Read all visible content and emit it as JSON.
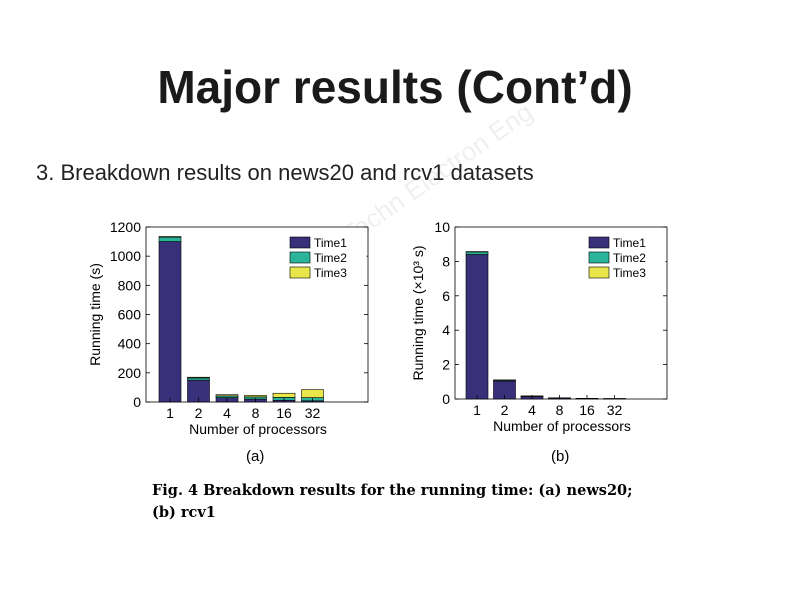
{
  "slide": {
    "title": "Major results (Cont’d)",
    "subtitle": "3. Breakdown results on news20 and rcv1 datasets",
    "watermark": "Inst Inform Techn Electron Eng"
  },
  "figure": {
    "caption": "Fig. 4  Breakdown results for the running time: (a) news20; (b) rcv1",
    "panel_a": "(a)",
    "panel_b": "(b)"
  },
  "colors": {
    "time1": "#38317a",
    "time2": "#2ab59b",
    "time3": "#e8e64a"
  },
  "chart_data": [
    {
      "type": "bar",
      "stacked": true,
      "categories": [
        "1",
        "2",
        "4",
        "8",
        "16",
        "32"
      ],
      "series": [
        {
          "name": "Time1",
          "values": [
            1100,
            150,
            30,
            20,
            12,
            8
          ]
        },
        {
          "name": "Time2",
          "values": [
            30,
            15,
            12,
            15,
            20,
            22
          ]
        },
        {
          "name": "Time3",
          "values": [
            5,
            5,
            8,
            10,
            28,
            55
          ]
        }
      ],
      "xlabel": "Number of processors",
      "ylabel": "Running time (s)",
      "ylim": [
        0,
        1200
      ],
      "yticks": [
        "0",
        "200",
        "400",
        "600",
        "800",
        "1000",
        "1200"
      ],
      "legend": "top-right",
      "grid": false
    },
    {
      "type": "bar",
      "stacked": true,
      "categories": [
        "1",
        "2",
        "4",
        "8",
        "16",
        "32"
      ],
      "series": [
        {
          "name": "Time1",
          "values": [
            8.4,
            1.05,
            0.15,
            0.05,
            0.02,
            0.01
          ]
        },
        {
          "name": "Time2",
          "values": [
            0.15,
            0.05,
            0.02,
            0.01,
            0.01,
            0.01
          ]
        },
        {
          "name": "Time3",
          "values": [
            0.02,
            0.01,
            0.01,
            0.01,
            0.01,
            0.01
          ]
        }
      ],
      "xlabel": "Number of processors",
      "ylabel": "Running time (×10³ s)",
      "ylim": [
        0,
        10
      ],
      "yticks": [
        "0",
        "2",
        "4",
        "6",
        "8",
        "10"
      ],
      "legend": "top-right",
      "grid": false
    }
  ]
}
